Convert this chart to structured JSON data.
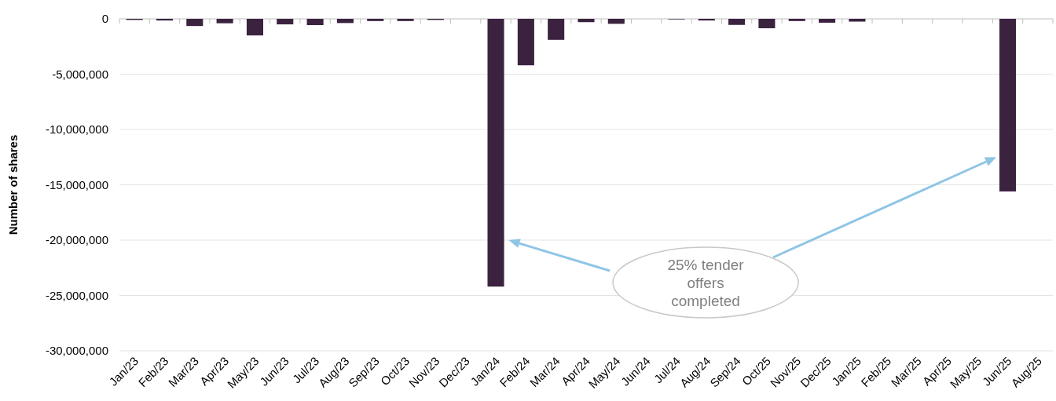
{
  "chart_data": {
    "type": "bar",
    "ylabel": "Number of shares",
    "categories": [
      "Jan/23",
      "Feb/23",
      "Mar/23",
      "Apr/23",
      "May/23",
      "Jun/23",
      "Jul/23",
      "Aug/23",
      "Sep/23",
      "Oct/23",
      "Nov/23",
      "Dec/23",
      "Jan/24",
      "Feb/24",
      "Mar/24",
      "Apr/24",
      "May/24",
      "Jun/24",
      "Jul/24",
      "Aug/24",
      "Sep/24",
      "Oct/25",
      "Nov/25",
      "Dec/25",
      "Jan/25",
      "Feb/25",
      "Mar/25",
      "Apr/25",
      "May/25",
      "Jun/25",
      "Aug/25"
    ],
    "values": [
      -100000,
      -150000,
      -650000,
      -400000,
      -1500000,
      -500000,
      -570000,
      -380000,
      -200000,
      -200000,
      -100000,
      0,
      -24200000,
      -4200000,
      -1900000,
      -300000,
      -450000,
      0,
      -50000,
      -150000,
      -550000,
      -850000,
      -200000,
      -350000,
      -250000,
      0,
      0,
      0,
      0,
      -15600000,
      0
    ],
    "color": "#3b2340",
    "ylim": [
      -30000000,
      0
    ],
    "yticks": [
      {
        "value": -30000000,
        "label": "-30,000,000"
      },
      {
        "value": -25000000,
        "label": "-25,000,000"
      },
      {
        "value": -20000000,
        "label": "-20,000,000"
      },
      {
        "value": -15000000,
        "label": "-15,000,000"
      },
      {
        "value": -10000000,
        "label": "-10,000,000"
      },
      {
        "value": -5000000,
        "label": "-5,000,000"
      },
      0
    ],
    "grid": "y",
    "annotations": [
      "25% tender offers completed"
    ]
  }
}
